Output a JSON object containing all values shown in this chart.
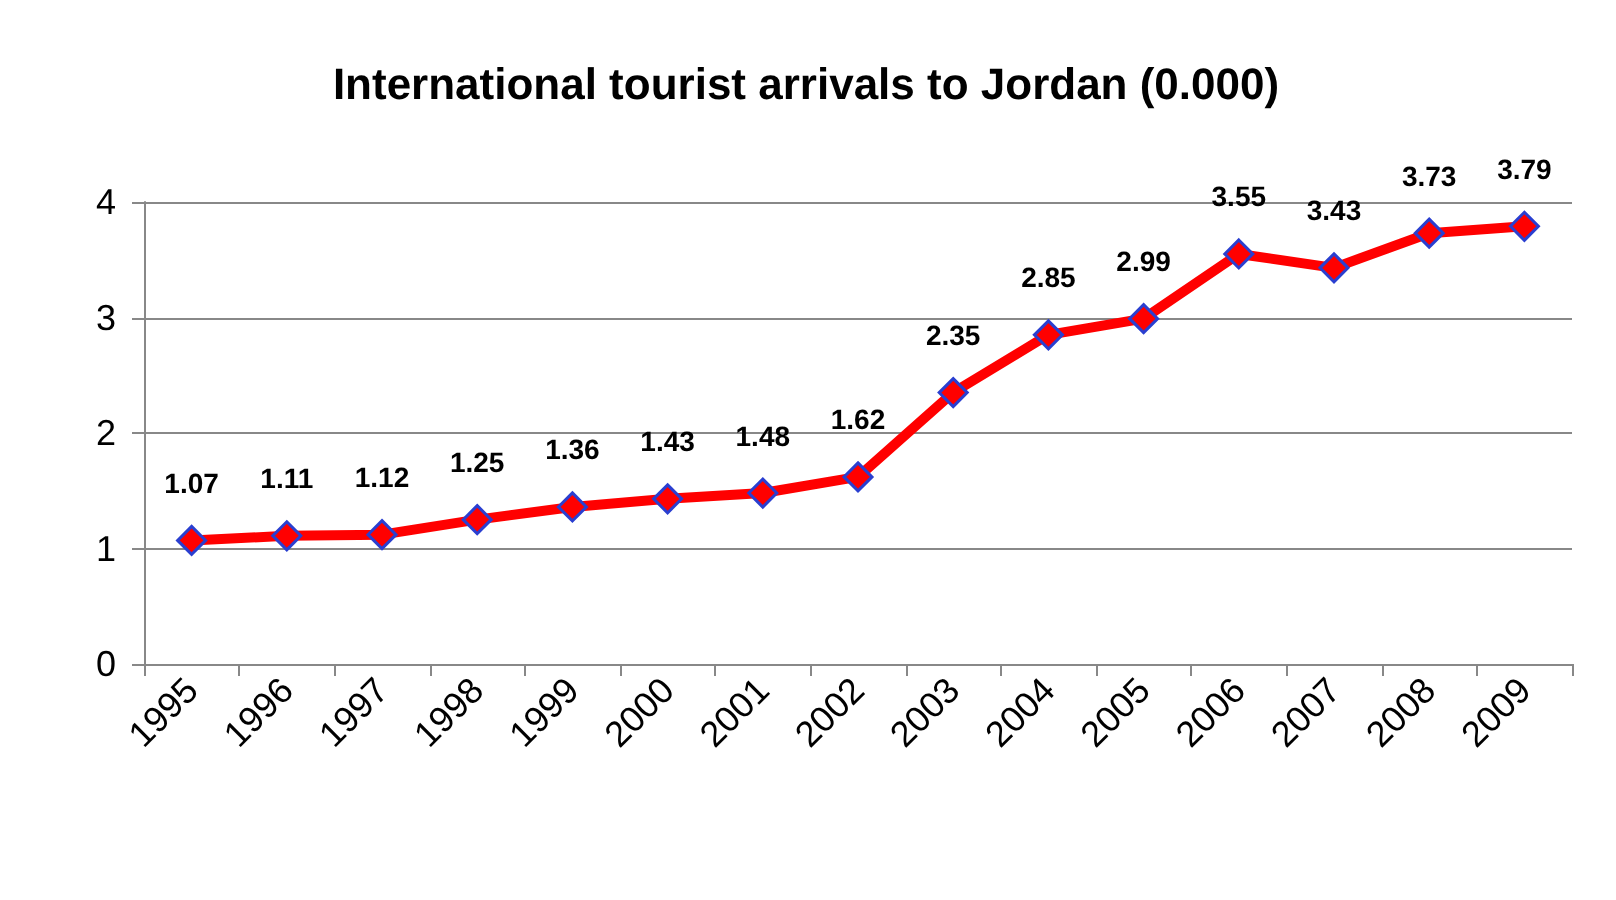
{
  "chart_data": {
    "type": "line",
    "title": "International tourist arrivals to Jordan (0.000)",
    "categories": [
      "1995",
      "1996",
      "1997",
      "1998",
      "1999",
      "2000",
      "2001",
      "2002",
      "2003",
      "2004",
      "2005",
      "2006",
      "2007",
      "2008",
      "2009"
    ],
    "values": [
      1.07,
      1.11,
      1.12,
      1.25,
      1.36,
      1.43,
      1.48,
      1.62,
      2.35,
      2.85,
      2.99,
      3.55,
      3.43,
      3.73,
      3.79
    ],
    "color": "#ff0000",
    "marker": "diamond",
    "line_style": "solid",
    "data_labels": true,
    "grid": "y",
    "ylim": [
      0,
      4
    ],
    "yticks": [
      0,
      1,
      2,
      3,
      4
    ]
  }
}
